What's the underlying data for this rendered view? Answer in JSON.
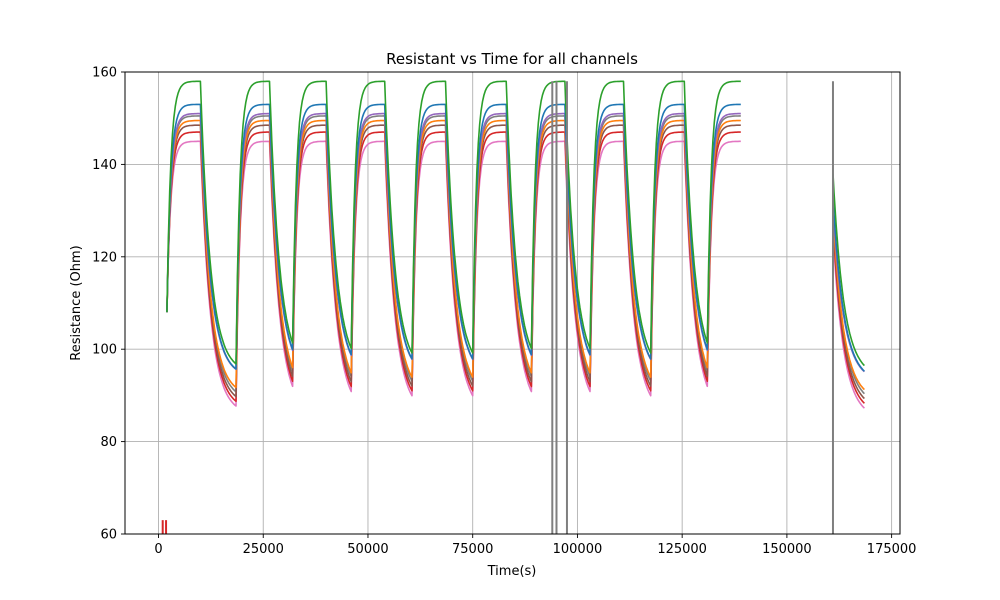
{
  "chart_data": {
    "type": "line",
    "title": "Resistant vs Time for all channels",
    "xlabel": "Time(s)",
    "ylabel": "Resistance (Ohm)",
    "xlim": [
      -8000,
      177000
    ],
    "ylim": [
      60,
      160
    ],
    "xticks": [
      0,
      25000,
      50000,
      75000,
      100000,
      125000,
      150000,
      175000
    ],
    "xtick_labels": [
      "0",
      "25000",
      "50000",
      "75000",
      "100000",
      "125000",
      "150000",
      "175000"
    ],
    "yticks": [
      60,
      80,
      100,
      120,
      140,
      160
    ],
    "ytick_labels": [
      "60",
      "80",
      "100",
      "120",
      "140",
      "160"
    ],
    "grid": true,
    "legend": false,
    "cycle": {
      "starts": [
        2000,
        18500,
        32000,
        46000,
        60500,
        75000,
        89000,
        103000,
        117500,
        131000
      ],
      "heat_duration": 8000,
      "end_time": 145000,
      "restart_time": 161000,
      "final_time": 168500
    },
    "series": [
      {
        "name": "",
        "color": "#2ca02c",
        "plateau": 158,
        "trough": 95
      },
      {
        "name": "",
        "color": "#1f77b4",
        "plateau": 153,
        "trough": 94
      },
      {
        "name": "",
        "color": "#9467bd",
        "plateau": 151,
        "trough": 94
      },
      {
        "name": "",
        "color": "#ff7f0e",
        "plateau": 149.5,
        "trough": 90
      },
      {
        "name": "",
        "color": "#8c564b",
        "plateau": 148.5,
        "trough": 88
      },
      {
        "name": "",
        "color": "#7f7f7f",
        "plateau": 150.5,
        "trough": 89
      },
      {
        "name": "",
        "color": "#d62728",
        "plateau": 147,
        "trough": 87
      },
      {
        "name": "",
        "color": "#e377c2",
        "plateau": 145,
        "trough": 86
      }
    ],
    "spikes": [
      {
        "x": 94000,
        "color": "#7f7f7f"
      },
      {
        "x": 95000,
        "color": "#7f7f7f"
      },
      {
        "x": 97500,
        "color": "#7f7f7f"
      },
      {
        "x": 161000,
        "color": "#7f7f7f"
      },
      {
        "x": 1000,
        "color": "#d62728"
      },
      {
        "x": 1800,
        "color": "#d62728"
      }
    ]
  }
}
